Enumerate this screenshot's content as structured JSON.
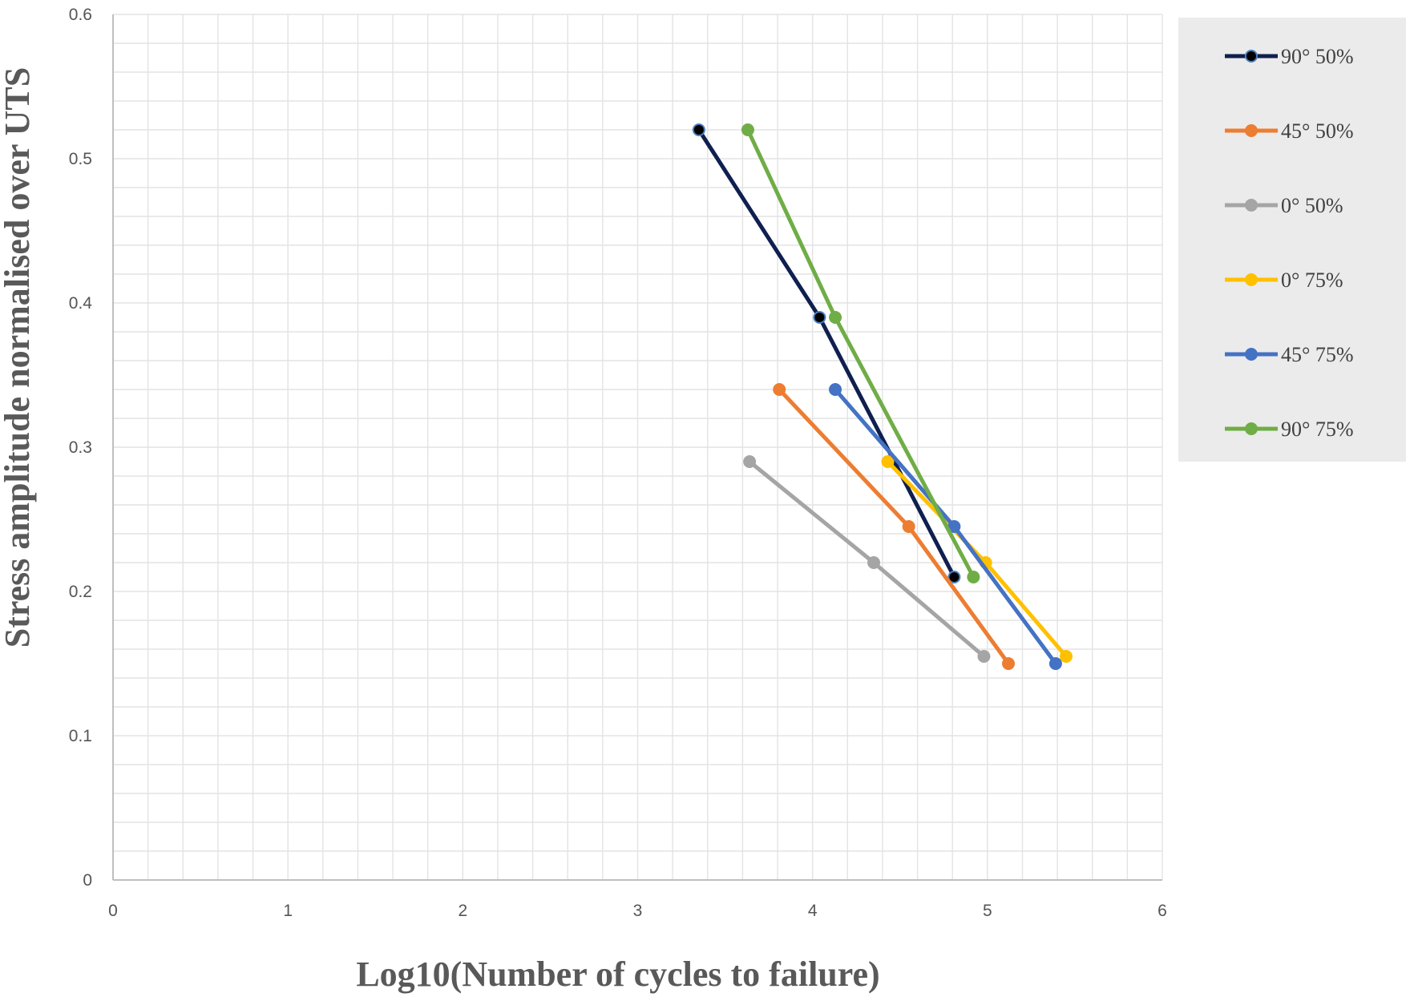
{
  "chart_data": {
    "type": "line",
    "title": "",
    "xlabel": "Log10(Number of cycles to failure)",
    "ylabel": "Stress amplitude normalised over UTS",
    "xlim": [
      0,
      6
    ],
    "ylim": [
      0,
      0.6
    ],
    "x_ticks": [
      "0",
      "1",
      "2",
      "3",
      "4",
      "5",
      "6"
    ],
    "y_ticks": [
      "0",
      "0.1",
      "0.2",
      "0.3",
      "0.4",
      "0.5",
      "0.6"
    ],
    "grid": true,
    "legend_position": "right",
    "series": [
      {
        "name": "90° 50%",
        "color": "#0f1f4f",
        "marker_fill": "#000000",
        "marker_edge": "#4a7fc1",
        "x": [
          3.35,
          4.04,
          4.81
        ],
        "y": [
          0.52,
          0.39,
          0.21
        ]
      },
      {
        "name": "45° 50%",
        "color": "#ed7d31",
        "marker_fill": "#ed7d31",
        "marker_edge": "#ed7d31",
        "x": [
          3.81,
          4.55,
          5.12
        ],
        "y": [
          0.34,
          0.245,
          0.15
        ]
      },
      {
        "name": "0° 50%",
        "color": "#a5a5a5",
        "marker_fill": "#a5a5a5",
        "marker_edge": "#a5a5a5",
        "x": [
          3.64,
          4.35,
          4.98
        ],
        "y": [
          0.29,
          0.22,
          0.155
        ]
      },
      {
        "name": "0° 75%",
        "color": "#ffc000",
        "marker_fill": "#ffc000",
        "marker_edge": "#ffc000",
        "x": [
          4.43,
          4.99,
          5.45
        ],
        "y": [
          0.29,
          0.22,
          0.155
        ]
      },
      {
        "name": "45° 75%",
        "color": "#4472c4",
        "marker_fill": "#4472c4",
        "marker_edge": "#4472c4",
        "x": [
          4.13,
          4.81,
          5.39
        ],
        "y": [
          0.34,
          0.245,
          0.15
        ]
      },
      {
        "name": "90° 75%",
        "color": "#70ad47",
        "marker_fill": "#70ad47",
        "marker_edge": "#70ad47",
        "x": [
          3.63,
          4.13,
          4.92
        ],
        "y": [
          0.52,
          0.39,
          0.21
        ]
      }
    ]
  }
}
